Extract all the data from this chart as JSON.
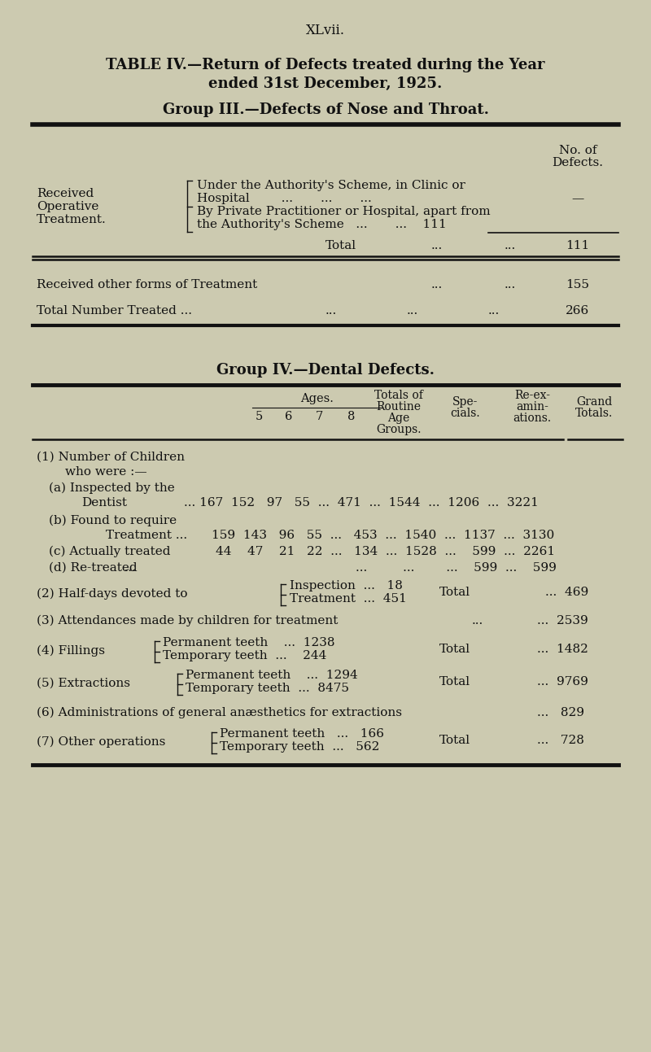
{
  "bg_color": "#cccab0",
  "text_color": "#111111",
  "page_label": "XLvii.",
  "title_line1": "TABLE IV.—Return of Defects treated during the Year",
  "title_line2": "ended 31st December, 1925.",
  "group3_heading": "Group III.—Defects of Nose and Throat.",
  "group4_heading": "Group IV.—Dental Defects."
}
